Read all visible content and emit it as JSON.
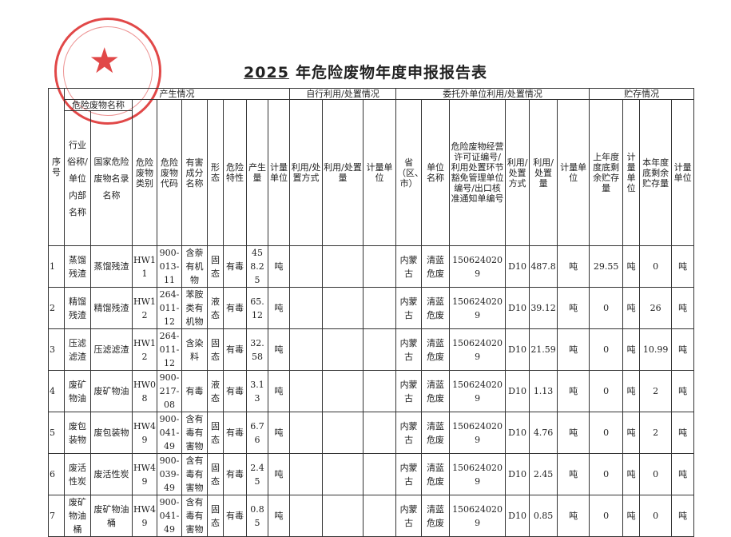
{
  "title": {
    "year": "2025",
    "text": "年危险废物年度申报报告表"
  },
  "colors": {
    "stamp": "#dc2828",
    "ink": "#222222"
  },
  "header": {
    "seq": "序号",
    "generation": "产生情况",
    "self_use": "自行利用/处置情况",
    "entrusted": "委托外单位利用/处置情况",
    "storage": "贮存情况",
    "waste_name": "危险废物名称",
    "industry_name": "行业俗称/单位内部名称",
    "national_name": "国家危险废物名录名称",
    "category": "危险废物类别",
    "code": "危险废物代码",
    "harmful": "有害成分名称",
    "form": "形态",
    "hazard": "危险特性",
    "amount": "产生量",
    "unit": "计量单位",
    "self_method": "利用/处置方式",
    "self_amount": "利用/处置量",
    "self_unit": "计量单位",
    "province": "省（区、市）",
    "company": "单位名称",
    "license": "危险废物经营许可证编号/利用处置环节豁免管理单位编号/出口核准通知单编号",
    "ent_method": "利用/处置方式",
    "ent_amount": "利用/处置量",
    "ent_unit": "计量单位",
    "prev_storage": "上年度度底剩余贮存量",
    "prev_unit": "计量单位",
    "curr_storage": "本年度底剩余贮存量",
    "curr_unit": "计量单位"
  },
  "rows": [
    [
      "1",
      "蒸馏残渣",
      "蒸馏残渣",
      "HW11",
      "900-013-11",
      "含萘有机物",
      "固态",
      "有毒",
      "458.25",
      "吨",
      "",
      "",
      "",
      "内蒙古",
      "清蓝危废",
      "1506240209",
      "D10",
      "487.8",
      "吨",
      "29.55",
      "吨",
      "0",
      "吨"
    ],
    [
      "2",
      "精馏残渣",
      "精馏残渣",
      "HW12",
      "264-011-12",
      "苯胺类有机物",
      "液态",
      "有毒",
      "65.12",
      "吨",
      "",
      "",
      "",
      "内蒙古",
      "清蓝危废",
      "1506240209",
      "D10",
      "39.12",
      "吨",
      "0",
      "吨",
      "26",
      "吨"
    ],
    [
      "3",
      "压滤滤渣",
      "压滤滤渣",
      "HW12",
      "264-011-12",
      "含染料",
      "固态",
      "有毒",
      "32.58",
      "吨",
      "",
      "",
      "",
      "内蒙古",
      "清蓝危废",
      "1506240209",
      "D10",
      "21.59",
      "吨",
      "0",
      "吨",
      "10.99",
      "吨"
    ],
    [
      "4",
      "废矿物油",
      "废矿物油",
      "HW08",
      "900-217-08",
      "有毒",
      "液态",
      "有毒",
      "3.13",
      "吨",
      "",
      "",
      "",
      "内蒙古",
      "清蓝危废",
      "1506240209",
      "D10",
      "1.13",
      "吨",
      "0",
      "吨",
      "2",
      "吨"
    ],
    [
      "5",
      "废包装物",
      "废包装物",
      "HW49",
      "900-041-49",
      "含有毒有害物",
      "固态",
      "有毒",
      "6.76",
      "吨",
      "",
      "",
      "",
      "内蒙古",
      "清蓝危废",
      "1506240209",
      "D10",
      "4.76",
      "吨",
      "0",
      "吨",
      "2",
      "吨"
    ],
    [
      "6",
      "废活性炭",
      "废活性炭",
      "HW49",
      "900-039-49",
      "含有毒有害物",
      "固态",
      "有毒",
      "2.45",
      "吨",
      "",
      "",
      "",
      "内蒙古",
      "清蓝危废",
      "1506240209",
      "D10",
      "2.45",
      "吨",
      "0",
      "吨",
      "0",
      "吨"
    ],
    [
      "7",
      "废矿物油桶",
      "废矿物油桶",
      "HW49",
      "900-041-49",
      "含有毒有害物",
      "固态",
      "有毒",
      "0.85",
      "吨",
      "",
      "",
      "",
      "内蒙古",
      "清蓝危废",
      "1506240209",
      "D10",
      "0.85",
      "吨",
      "0",
      "吨",
      "0",
      "吨"
    ]
  ]
}
